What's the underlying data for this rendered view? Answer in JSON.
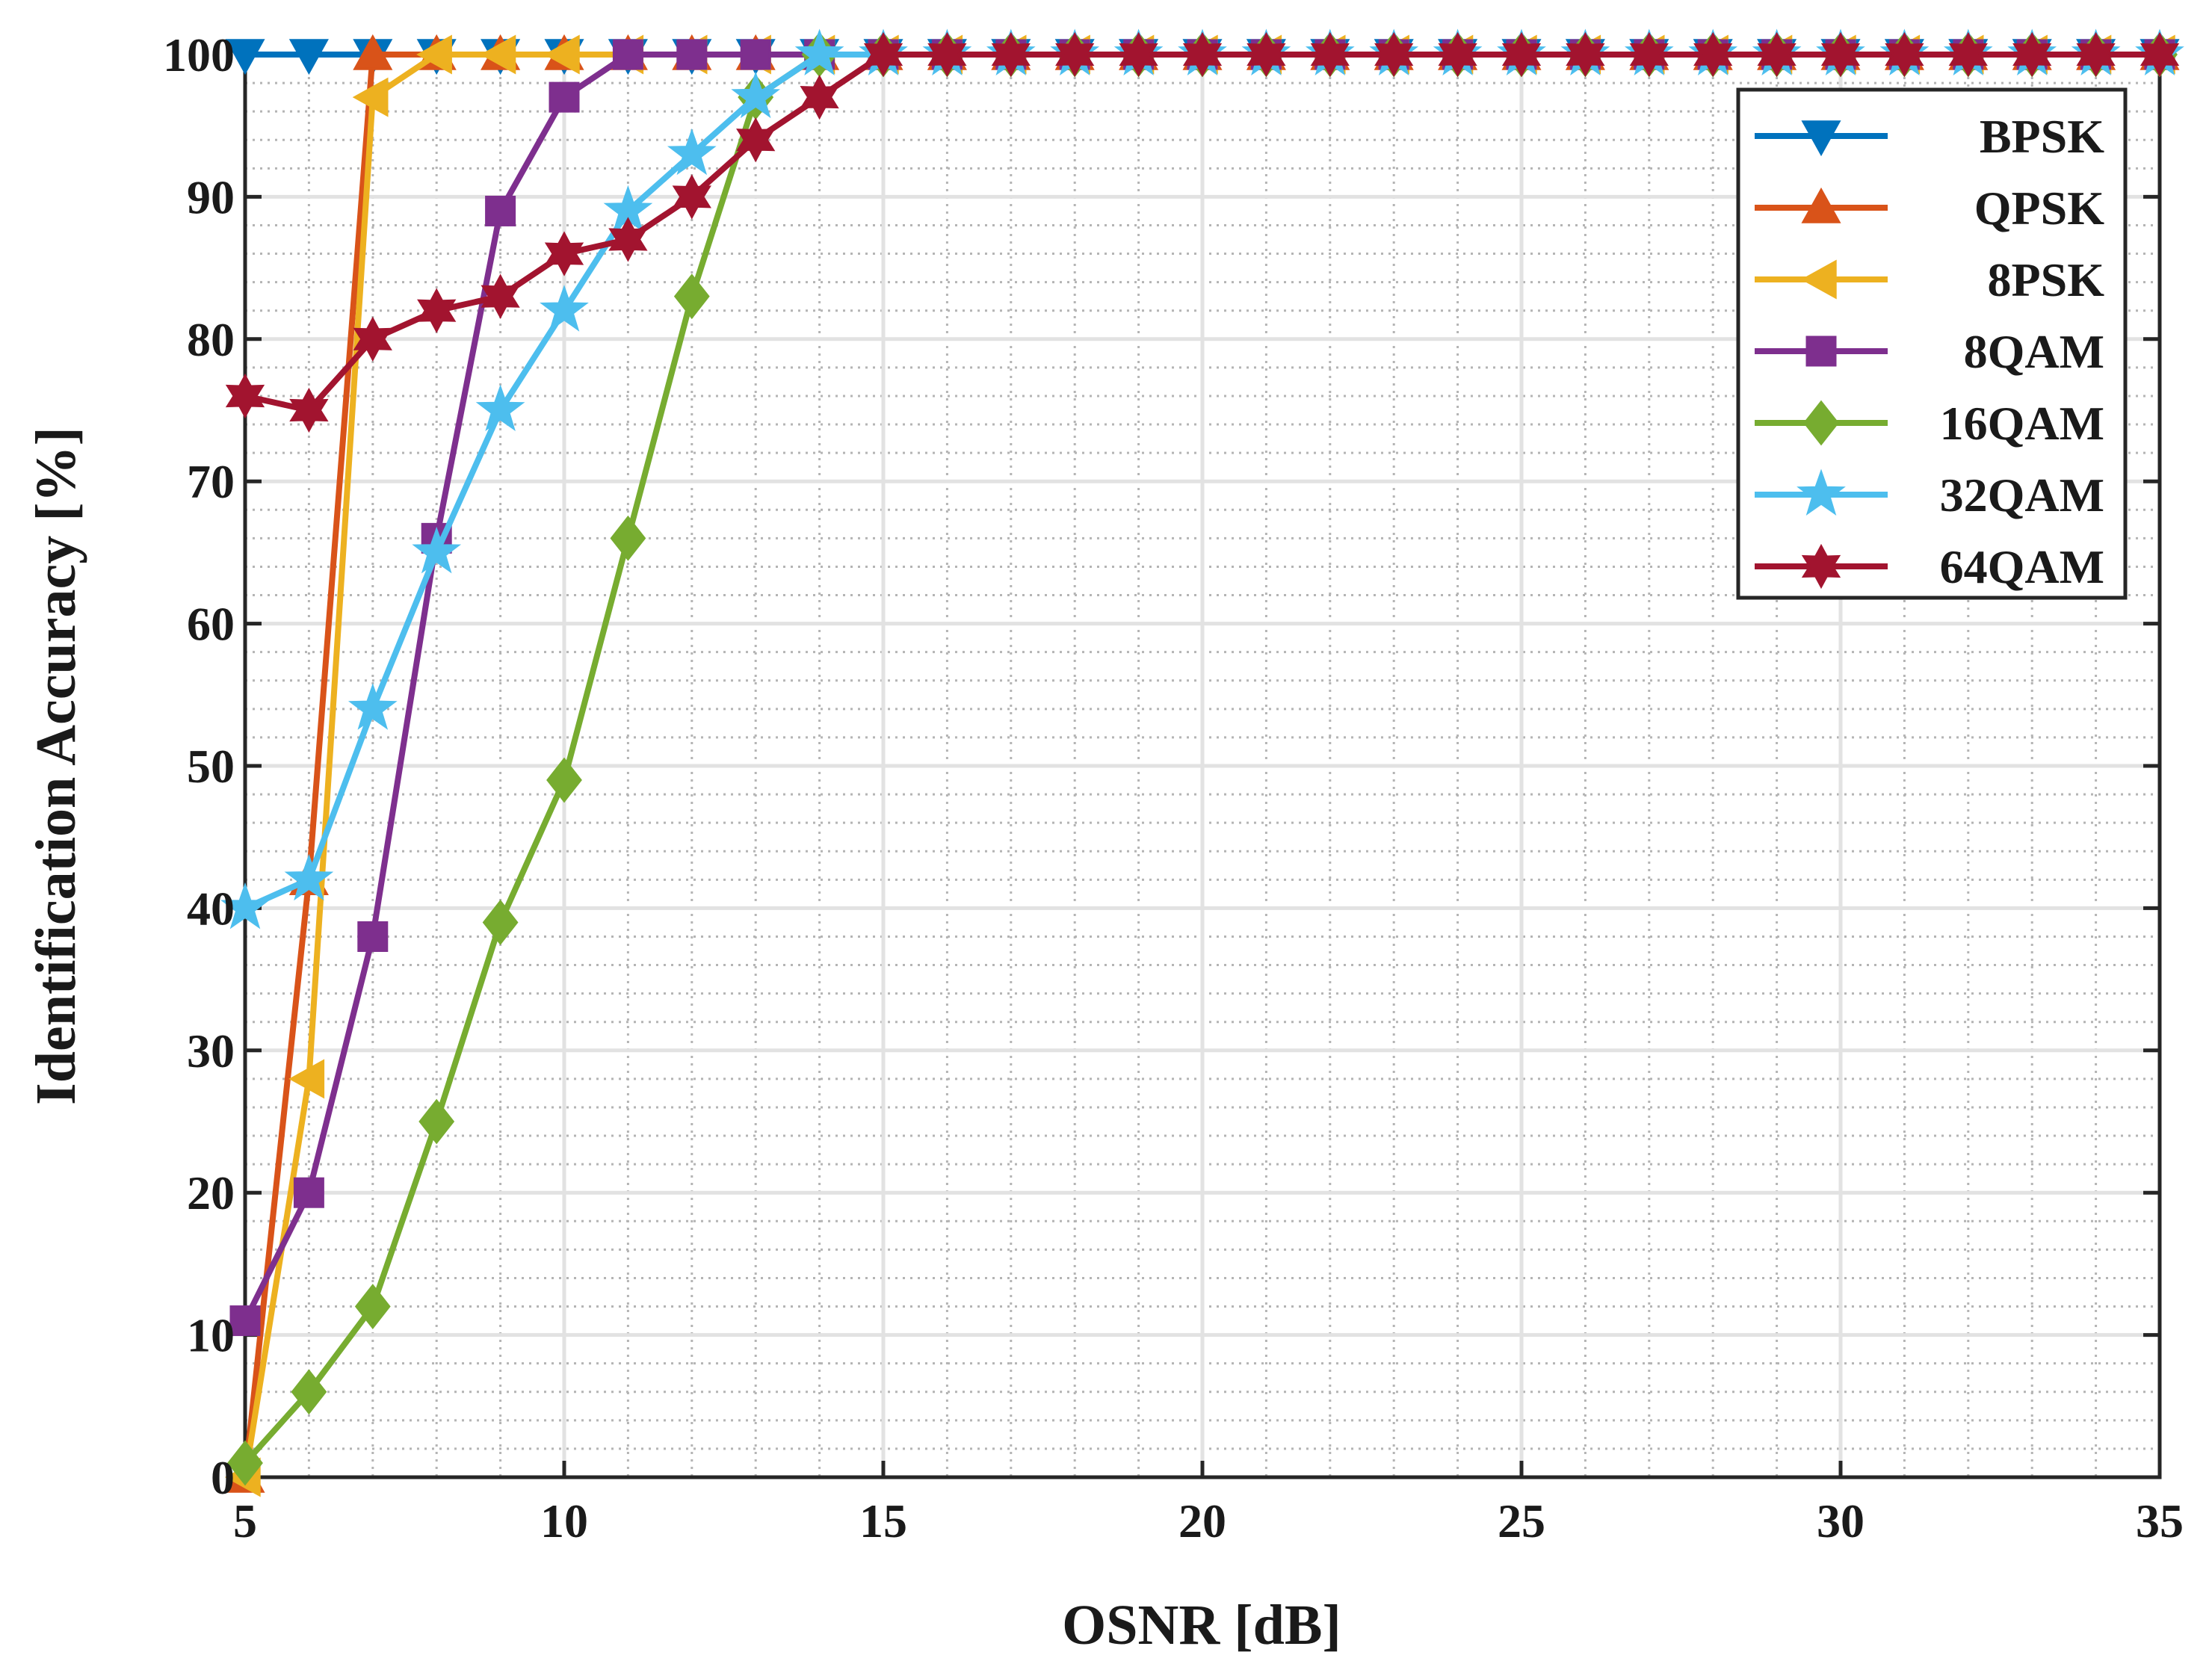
{
  "chart_data": {
    "type": "line",
    "title": "",
    "xlabel": "OSNR [dB]",
    "ylabel": "Identification Accuracy [%]",
    "xlim": [
      5,
      35
    ],
    "ylim": [
      0,
      100
    ],
    "xticks": [
      5,
      10,
      15,
      20,
      25,
      30,
      35
    ],
    "yticks": [
      0,
      10,
      20,
      30,
      40,
      50,
      60,
      70,
      80,
      90,
      100
    ],
    "xtick_labels": [
      "5",
      "10",
      "15",
      "20",
      "25",
      "30",
      "35"
    ],
    "ytick_labels": [
      "0",
      "10",
      "20",
      "30",
      "40",
      "50",
      "60",
      "70",
      "80",
      "90",
      "100"
    ],
    "grid": true,
    "legend_position": "top-right",
    "x": [
      5,
      6,
      7,
      8,
      9,
      10,
      11,
      12,
      13,
      14,
      15,
      16,
      17,
      18,
      19,
      20,
      21,
      22,
      23,
      24,
      25,
      26,
      27,
      28,
      29,
      30,
      31,
      32,
      33,
      34,
      35
    ],
    "series": [
      {
        "name": "BPSK",
        "color": "#0072BD",
        "marker": "triangle-down",
        "values": [
          100,
          100,
          100,
          100,
          100,
          100,
          100,
          100,
          100,
          100,
          100,
          100,
          100,
          100,
          100,
          100,
          100,
          100,
          100,
          100,
          100,
          100,
          100,
          100,
          100,
          100,
          100,
          100,
          100,
          100,
          100
        ]
      },
      {
        "name": "QPSK",
        "color": "#D95319",
        "marker": "triangle-up",
        "values": [
          0,
          42,
          100,
          100,
          100,
          100,
          100,
          100,
          100,
          100,
          100,
          100,
          100,
          100,
          100,
          100,
          100,
          100,
          100,
          100,
          100,
          100,
          100,
          100,
          100,
          100,
          100,
          100,
          100,
          100,
          100
        ]
      },
      {
        "name": "8PSK",
        "color": "#EDB120",
        "marker": "triangle-left",
        "values": [
          0,
          28,
          97,
          100,
          100,
          100,
          100,
          100,
          100,
          100,
          100,
          100,
          100,
          100,
          100,
          100,
          100,
          100,
          100,
          100,
          100,
          100,
          100,
          100,
          100,
          100,
          100,
          100,
          100,
          100,
          100
        ]
      },
      {
        "name": "8QAM",
        "color": "#7E2F8E",
        "marker": "square",
        "values": [
          11,
          20,
          38,
          66,
          89,
          97,
          100,
          100,
          100,
          100,
          100,
          100,
          100,
          100,
          100,
          100,
          100,
          100,
          100,
          100,
          100,
          100,
          100,
          100,
          100,
          100,
          100,
          100,
          100,
          100,
          100
        ]
      },
      {
        "name": "16QAM",
        "color": "#77AC30",
        "marker": "diamond",
        "values": [
          1,
          6,
          12,
          25,
          39,
          49,
          66,
          83,
          97,
          100,
          100,
          100,
          100,
          100,
          100,
          100,
          100,
          100,
          100,
          100,
          100,
          100,
          100,
          100,
          100,
          100,
          100,
          100,
          100,
          100,
          100
        ]
      },
      {
        "name": "32QAM",
        "color": "#4DBEEE",
        "marker": "pentagram",
        "values": [
          40,
          42,
          54,
          65,
          75,
          82,
          89,
          93,
          97,
          100,
          100,
          100,
          100,
          100,
          100,
          100,
          100,
          100,
          100,
          100,
          100,
          100,
          100,
          100,
          100,
          100,
          100,
          100,
          100,
          100,
          100
        ]
      },
      {
        "name": "64QAM",
        "color": "#A2142F",
        "marker": "hexagram",
        "values": [
          76,
          75,
          80,
          82,
          83,
          86,
          87,
          90,
          94,
          97,
          100,
          100,
          100,
          100,
          100,
          100,
          100,
          100,
          100,
          100,
          100,
          100,
          100,
          100,
          100,
          100,
          100,
          100,
          100,
          100,
          100
        ]
      }
    ]
  }
}
